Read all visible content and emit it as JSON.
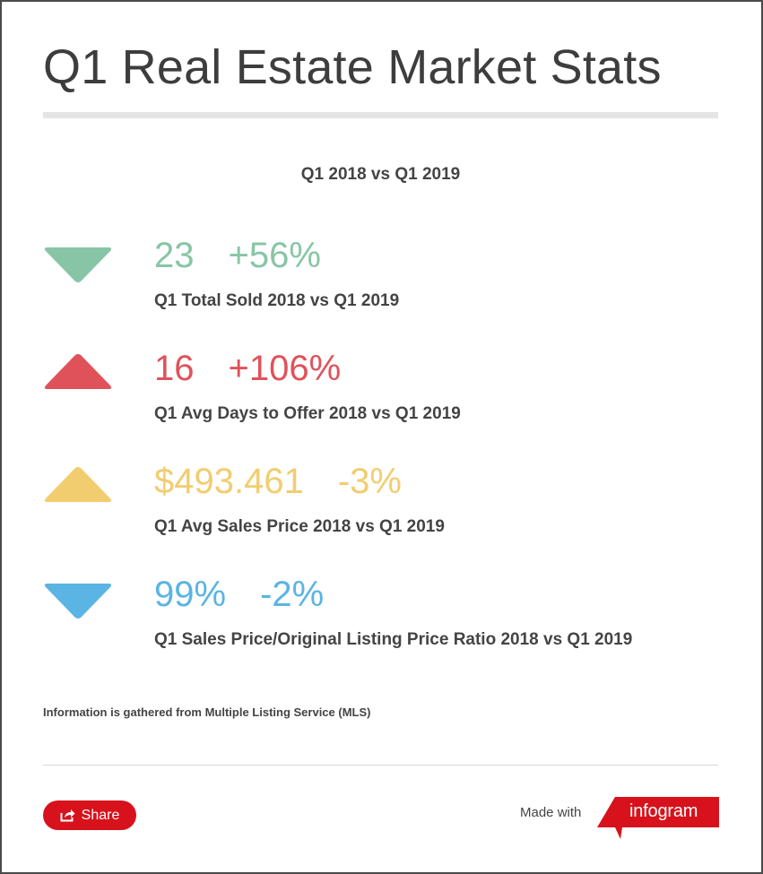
{
  "title": "Q1 Real Estate Market Stats",
  "subtitle": "Q1 2018 vs Q1 2019",
  "colors": {
    "green": "#88c5a6",
    "red": "#e0525a",
    "yellow": "#f2cd6f",
    "blue": "#5ab4e4",
    "brand_red": "#d7121c"
  },
  "stats": [
    {
      "value": "23",
      "change": "+56%",
      "label": "Q1 Total Sold 2018 vs Q1 2019",
      "direction": "down",
      "icon": "triangle-down-icon",
      "color": "#88c5a6"
    },
    {
      "value": "16",
      "change": "+106%",
      "label": "Q1 Avg Days to Offer 2018 vs Q1 2019",
      "direction": "up",
      "icon": "triangle-up-icon",
      "color": "#e0525a"
    },
    {
      "value": "$493.461",
      "change": "-3%",
      "label": "Q1 Avg Sales Price 2018 vs Q1 2019",
      "direction": "up",
      "icon": "triangle-up-icon",
      "color": "#f2cd6f"
    },
    {
      "value": "99%",
      "change": "-2%",
      "label": "Q1 Sales Price/Original Listing Price Ratio 2018 vs Q1 2019",
      "direction": "down",
      "icon": "triangle-down-icon",
      "color": "#5ab4e4"
    }
  ],
  "footnote": "Information is gathered from Multiple Listing Service (MLS)",
  "footer": {
    "share_label": "Share",
    "share_icon": "share-icon",
    "made_with": "Made with",
    "brand": "infogram"
  }
}
